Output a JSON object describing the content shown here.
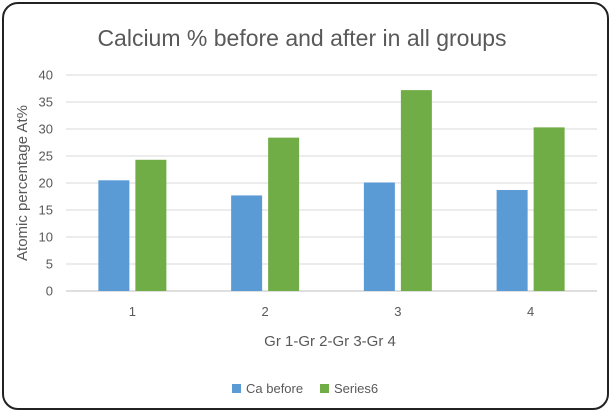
{
  "chart_data": {
    "type": "bar",
    "title": "Calcium % before and after in all groups",
    "xlabel": "Gr 1-Gr 2-Gr 3-Gr 4",
    "ylabel": "Atomic percentage At%",
    "categories": [
      "1",
      "2",
      "3",
      "4"
    ],
    "series": [
      {
        "name": "Ca before",
        "color": "#5b9bd5",
        "values": [
          20.5,
          17.7,
          20.1,
          18.7
        ]
      },
      {
        "name": "Series6",
        "color": "#70ad47",
        "values": [
          24.3,
          28.4,
          37.2,
          30.3
        ]
      }
    ],
    "ylim": [
      0,
      40
    ],
    "yticks": [
      0,
      5,
      10,
      15,
      20,
      25,
      30,
      35,
      40
    ],
    "grid": true,
    "legend_position": "bottom"
  }
}
